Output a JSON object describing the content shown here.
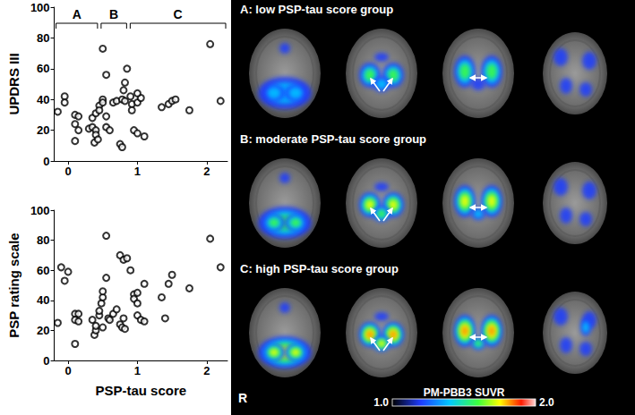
{
  "chart_data": [
    {
      "type": "scatter",
      "ylabel": "UPDRS III",
      "x": [
        -0.05,
        -0.05,
        -0.15,
        0.1,
        0.15,
        0.1,
        0.15,
        0.1,
        0.3,
        0.35,
        0.35,
        0.4,
        0.4,
        0.38,
        0.43,
        0.4,
        0.45,
        0.45,
        0.5,
        0.55,
        0.5,
        0.5,
        0.55,
        0.55,
        0.6,
        0.65,
        0.7,
        0.75,
        0.78,
        0.8,
        0.82,
        0.85,
        0.82,
        0.78,
        0.9,
        0.92,
        0.92,
        0.95,
        1.0,
        1.0,
        1.05,
        1.1,
        1.0,
        1.35,
        1.45,
        1.5,
        1.55,
        1.75,
        2.05,
        2.2
      ],
      "values": [
        42,
        38,
        32,
        30,
        29,
        24,
        20,
        13,
        21,
        28,
        22,
        20,
        17,
        12,
        14,
        31,
        36,
        33,
        73,
        56,
        40,
        38,
        29,
        22,
        20,
        38,
        39,
        11,
        40,
        46,
        51,
        60,
        39,
        9,
        42,
        37,
        33,
        20,
        38,
        18,
        41,
        16,
        44,
        35,
        37,
        39,
        40,
        33,
        76,
        39
      ],
      "xlim": [
        -0.2,
        2.3
      ],
      "xticks": [
        0,
        1,
        2
      ],
      "ylim": [
        0,
        100
      ],
      "yticks": [
        0,
        20,
        40,
        60,
        80,
        100
      ],
      "grid": false,
      "marker": "circle-open",
      "color": "#000000",
      "annotations": [
        {
          "text": "A",
          "x_range": [
            -0.2,
            0.45
          ]
        },
        {
          "text": "B",
          "x_range": [
            0.45,
            0.87
          ]
        },
        {
          "text": "C",
          "x_range": [
            0.87,
            2.3
          ]
        }
      ]
    },
    {
      "type": "scatter",
      "ylabel": "PSP rating scale",
      "xlabel": "PSP-tau score",
      "x": [
        -0.1,
        -0.05,
        0.0,
        -0.15,
        0.1,
        0.15,
        0.1,
        0.15,
        0.1,
        0.35,
        0.38,
        0.4,
        0.4,
        0.45,
        0.45,
        0.48,
        0.5,
        0.5,
        0.5,
        0.55,
        0.55,
        0.58,
        0.6,
        0.65,
        0.7,
        0.75,
        0.78,
        0.75,
        0.8,
        0.85,
        0.8,
        0.82,
        0.9,
        0.95,
        0.95,
        1.0,
        1.0,
        1.0,
        1.05,
        1.1,
        1.1,
        1.35,
        1.4,
        1.45,
        1.5,
        1.75,
        2.05,
        2.2
      ],
      "values": [
        62,
        53,
        59,
        25,
        31,
        31,
        27,
        26,
        11,
        27,
        17,
        20,
        23,
        30,
        33,
        38,
        42,
        46,
        22,
        83,
        55,
        28,
        27,
        31,
        34,
        24,
        22,
        70,
        67,
        68,
        28,
        21,
        60,
        44,
        41,
        45,
        38,
        30,
        27,
        51,
        26,
        42,
        28,
        51,
        57,
        48,
        81,
        62
      ],
      "xlim": [
        -0.2,
        2.3
      ],
      "xticks": [
        0,
        1,
        2
      ],
      "ylim": [
        0,
        100
      ],
      "yticks": [
        0,
        20,
        40,
        60,
        80,
        100
      ],
      "grid": false,
      "marker": "circle-open",
      "color": "#000000"
    }
  ],
  "image_panel": {
    "rows": [
      {
        "title": "A: low PSP-tau score group"
      },
      {
        "title": "B: moderate PSP-tau score group"
      },
      {
        "title": "C: high PSP-tau score group"
      }
    ],
    "orientation_label": "R",
    "colorbar": {
      "label": "PM-PBB3 SUVR",
      "range": [
        1.0,
        2.0
      ],
      "ticks": [
        {
          "value": 1.0,
          "label": "1.0"
        },
        {
          "value": 2.0,
          "label": "2.0"
        }
      ]
    }
  }
}
